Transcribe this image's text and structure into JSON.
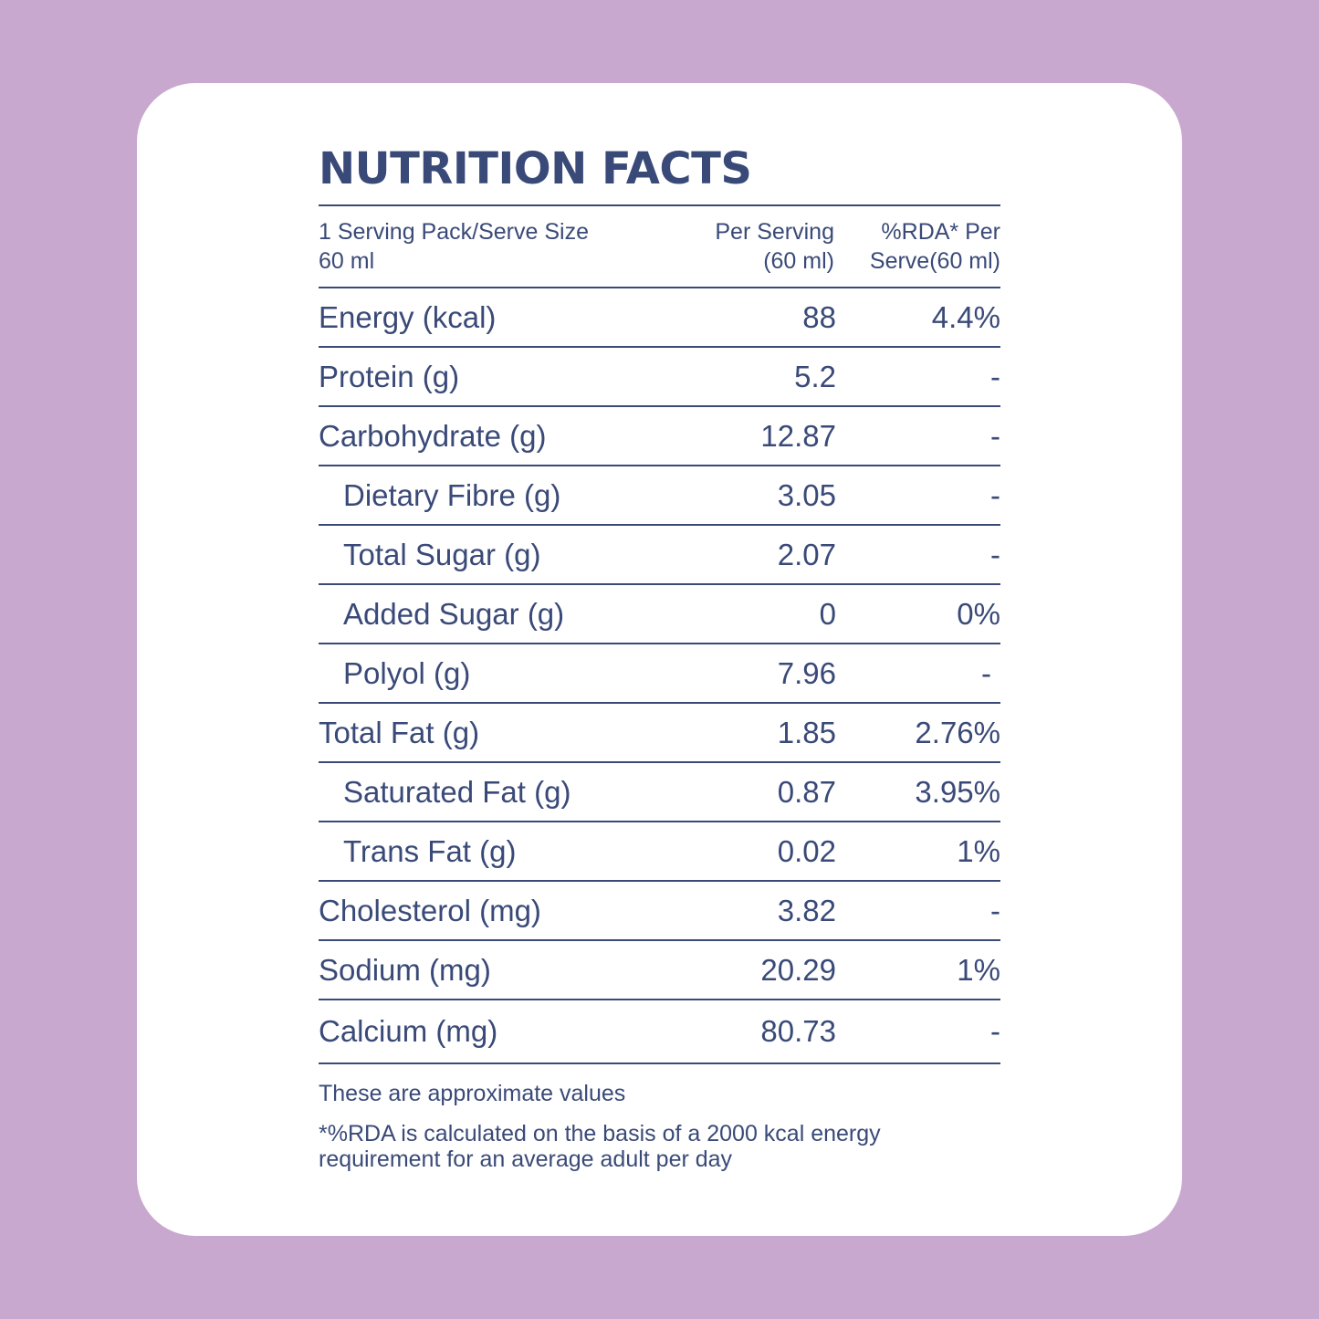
{
  "title": "NUTRITION FACTS",
  "header": {
    "col1_line1": "1 Serving Pack/Serve Size",
    "col1_line2": "60 ml",
    "col2_line1": "Per Serving",
    "col2_line2": "(60 ml)",
    "col3_line1": "%RDA* Per",
    "col3_line2": "Serve(60 ml)"
  },
  "rows": [
    {
      "label": "Energy (kcal)",
      "per_serving": "88",
      "rda": "4.4%",
      "indent": false
    },
    {
      "label": "Protein (g)",
      "per_serving": "5.2",
      "rda": "-",
      "indent": false
    },
    {
      "label": "Carbohydrate (g)",
      "per_serving": "12.87",
      "rda": "-",
      "indent": false
    },
    {
      "label": "Dietary Fibre (g)",
      "per_serving": "3.05",
      "rda": "-",
      "indent": true
    },
    {
      "label": "Total Sugar (g)",
      "per_serving": "2.07",
      "rda": "-",
      "indent": true
    },
    {
      "label": "Added Sugar (g)",
      "per_serving": "0",
      "rda": "0%",
      "indent": true
    },
    {
      "label": "Polyol (g)",
      "per_serving": "7.96",
      "rda": "-",
      "indent": true
    },
    {
      "label": "Total Fat (g)",
      "per_serving": "1.85",
      "rda": "2.76%",
      "indent": false
    },
    {
      "label": "Saturated Fat (g)",
      "per_serving": "0.87",
      "rda": "3.95%",
      "indent": true
    },
    {
      "label": "Trans Fat (g)",
      "per_serving": "0.02",
      "rda": "1%",
      "indent": true
    },
    {
      "label": "Cholesterol (mg)",
      "per_serving": "3.82",
      "rda": "-",
      "indent": false
    },
    {
      "label": "Sodium (mg)",
      "per_serving": "20.29",
      "rda": "1%",
      "indent": false
    },
    {
      "label": "Calcium (mg)",
      "per_serving": "80.73",
      "rda": "-",
      "indent": false
    }
  ],
  "notes": {
    "approx": "These are approximate values",
    "rda_line1": "*%RDA is calculated on the basis of a 2000 kcal energy",
    "rda_line2": "requirement for an average adult per day"
  },
  "colors": {
    "background": "#c9a8d0",
    "card": "#ffffff",
    "text": "#3a4a78"
  }
}
